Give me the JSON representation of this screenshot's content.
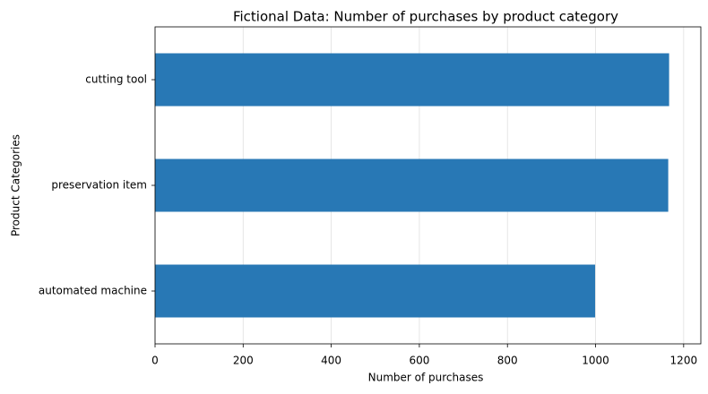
{
  "chart_data": {
    "type": "barh",
    "title": "Fictional Data: Number of purchases by product category",
    "xlabel": "Number of purchases",
    "ylabel": "Product Categories",
    "categories": [
      "automated machine",
      "preservation item",
      "cutting tool"
    ],
    "values": [
      999,
      1165,
      1167
    ],
    "color": "#2878b5",
    "xlim": [
      0,
      1239
    ],
    "xticks": [
      0,
      200,
      400,
      600,
      800,
      1000,
      1200
    ],
    "grid": true
  }
}
